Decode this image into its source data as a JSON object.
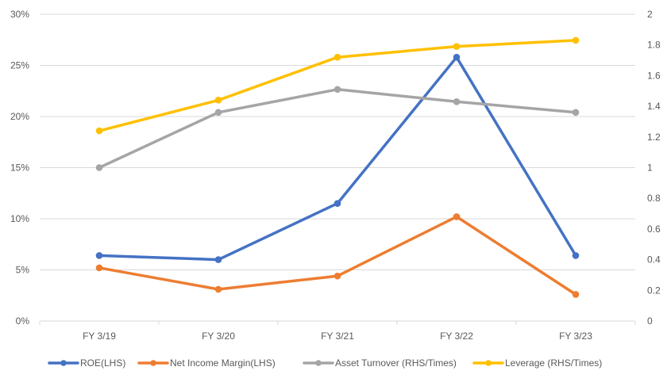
{
  "chart_data": {
    "type": "line",
    "title": "",
    "xlabel": "",
    "ylabel": "",
    "y2label": "",
    "categories": [
      "FY 3/19",
      "FY 3/20",
      "FY 3/21",
      "FY 3/22",
      "FY 3/23"
    ],
    "ylim": [
      0,
      30
    ],
    "y_ticks": [
      "0%",
      "5%",
      "10%",
      "15%",
      "20%",
      "25%",
      "30%"
    ],
    "y2lim": [
      0,
      2
    ],
    "y2_ticks": [
      "0",
      "0.2",
      "0.4",
      "0.6",
      "0.8",
      "1",
      "1.2",
      "1.4",
      "1.6",
      "1.8",
      "2"
    ],
    "grid": true,
    "legend_position": "bottom",
    "series": [
      {
        "name": "ROE(LHS)",
        "axis": "left",
        "color": "#4472C4",
        "values": [
          6.4,
          6.0,
          11.5,
          25.8,
          6.4
        ]
      },
      {
        "name": "Net Income Margin(LHS)",
        "axis": "left",
        "color": "#ED7D31",
        "values": [
          5.2,
          3.1,
          4.4,
          10.2,
          2.6
        ]
      },
      {
        "name": "Asset Turnover (RHS/Times)",
        "axis": "right",
        "color": "#A5A5A5",
        "values": [
          1.0,
          1.36,
          1.51,
          1.43,
          1.36
        ]
      },
      {
        "name": "Leverage (RHS/Times)",
        "axis": "right",
        "color": "#FFC000",
        "values": [
          1.24,
          1.44,
          1.72,
          1.79,
          1.83
        ]
      }
    ]
  }
}
